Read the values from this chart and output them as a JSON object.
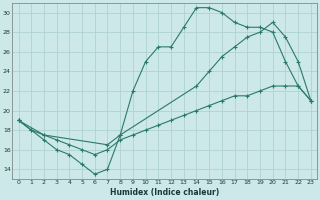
{
  "xlabel": "Humidex (Indice chaleur)",
  "background_color": "#cce8e8",
  "grid_color": "#aacece",
  "line_color": "#2a7a6a",
  "xlim": [
    -0.5,
    23.5
  ],
  "ylim": [
    13,
    31
  ],
  "xticks": [
    0,
    1,
    2,
    3,
    4,
    5,
    6,
    7,
    8,
    9,
    10,
    11,
    12,
    13,
    14,
    15,
    16,
    17,
    18,
    19,
    20,
    21,
    22,
    23
  ],
  "yticks": [
    14,
    16,
    18,
    20,
    22,
    24,
    26,
    28,
    30
  ],
  "line1_x": [
    0,
    1,
    2,
    3,
    4,
    5,
    6,
    7,
    8,
    9,
    10,
    11,
    12,
    13,
    14,
    15,
    16,
    17,
    18,
    19,
    20,
    21,
    22,
    23
  ],
  "line1_y": [
    19,
    18,
    17,
    16,
    15.5,
    14.5,
    13.5,
    14,
    17.5,
    22,
    25,
    26.5,
    26.5,
    28.5,
    30.5,
    30.5,
    30,
    29,
    28.5,
    28.5,
    28,
    25,
    22.5,
    21
  ],
  "line2_x": [
    0,
    2,
    7,
    8,
    14,
    15,
    16,
    17,
    18,
    19,
    20,
    21,
    22,
    23
  ],
  "line2_y": [
    19,
    17.5,
    16.5,
    17.5,
    22.5,
    24,
    25.5,
    26.5,
    27.5,
    28,
    29,
    27.5,
    25,
    21
  ],
  "line3_x": [
    0,
    1,
    2,
    3,
    4,
    5,
    6,
    7,
    8,
    9,
    10,
    11,
    12,
    13,
    14,
    15,
    16,
    17,
    18,
    19,
    20,
    21,
    22,
    23
  ],
  "line3_y": [
    19,
    18,
    17.5,
    17,
    16.5,
    16,
    15.5,
    16,
    17,
    17.5,
    18,
    18.5,
    19,
    19.5,
    20,
    20.5,
    21,
    21.5,
    21.5,
    22,
    22.5,
    22.5,
    22.5,
    21
  ]
}
